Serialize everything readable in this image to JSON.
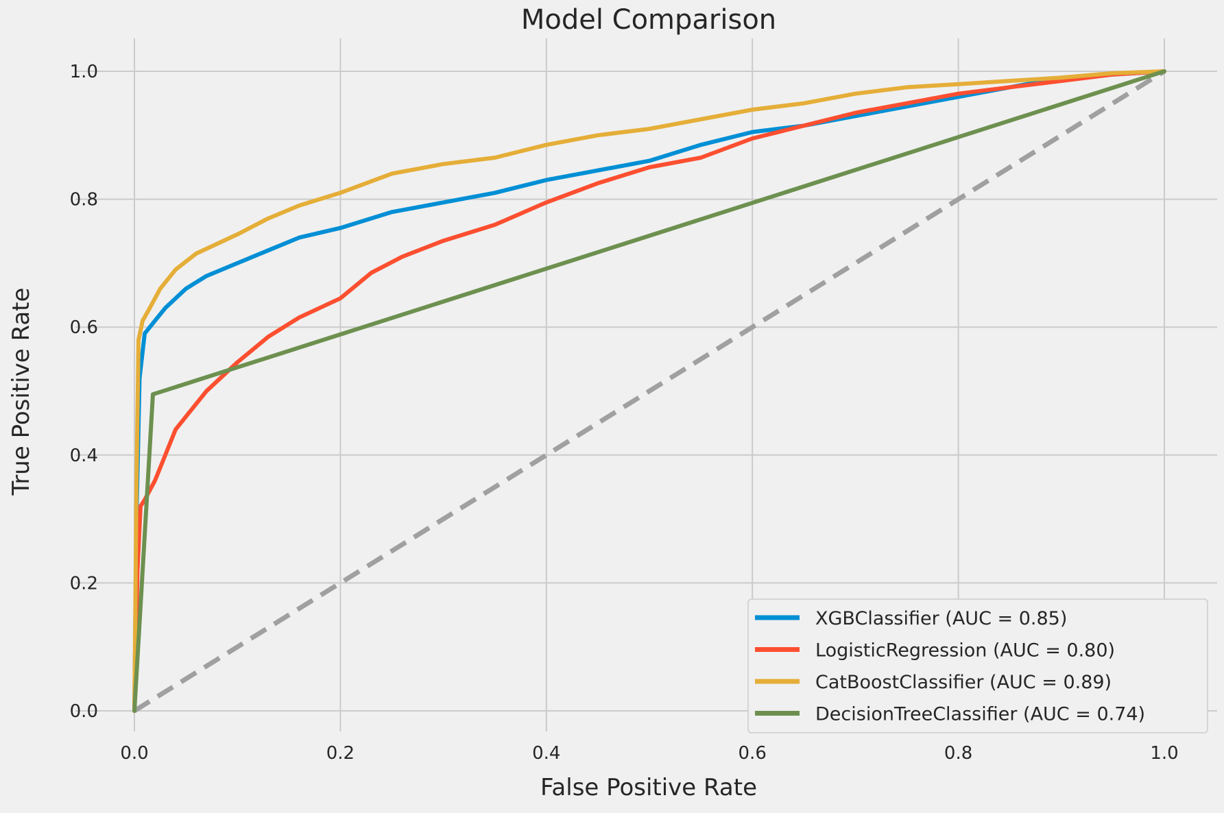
{
  "chart_data": {
    "type": "line",
    "title": "Model Comparison",
    "xlabel": "False Positive Rate",
    "ylabel": "True Positive Rate",
    "xlim": [
      -0.05,
      1.05
    ],
    "ylim": [
      -0.05,
      1.05
    ],
    "xticks": [
      0.0,
      0.2,
      0.4,
      0.6,
      0.8,
      1.0
    ],
    "yticks": [
      0.0,
      0.2,
      0.4,
      0.6,
      0.8,
      1.0
    ],
    "xtick_labels": [
      "0.0",
      "0.2",
      "0.4",
      "0.6",
      "0.8",
      "1.0"
    ],
    "ytick_labels": [
      "0.0",
      "0.2",
      "0.4",
      "0.6",
      "0.8",
      "1.0"
    ],
    "grid": true,
    "legend_position": "bottom-right",
    "series": [
      {
        "name": "XGBClassifier (AUC = 0.85)",
        "color": "#008fd5",
        "x": [
          0,
          0.002,
          0.005,
          0.01,
          0.02,
          0.03,
          0.05,
          0.07,
          0.1,
          0.13,
          0.16,
          0.2,
          0.25,
          0.3,
          0.35,
          0.4,
          0.45,
          0.5,
          0.55,
          0.6,
          0.65,
          0.7,
          0.75,
          0.8,
          0.85,
          0.9,
          0.95,
          1.0
        ],
        "y": [
          0,
          0.3,
          0.52,
          0.59,
          0.61,
          0.63,
          0.66,
          0.68,
          0.7,
          0.72,
          0.74,
          0.755,
          0.78,
          0.795,
          0.81,
          0.83,
          0.845,
          0.86,
          0.885,
          0.905,
          0.915,
          0.93,
          0.945,
          0.96,
          0.975,
          0.99,
          0.995,
          1.0
        ]
      },
      {
        "name": "LogisticRegression (AUC = 0.80)",
        "color": "#fc4f30",
        "x": [
          0,
          0.003,
          0.006,
          0.01,
          0.02,
          0.03,
          0.04,
          0.05,
          0.07,
          0.1,
          0.13,
          0.16,
          0.2,
          0.23,
          0.26,
          0.3,
          0.35,
          0.4,
          0.45,
          0.5,
          0.55,
          0.6,
          0.65,
          0.7,
          0.75,
          0.8,
          0.85,
          0.9,
          0.95,
          1.0
        ],
        "y": [
          0,
          0.22,
          0.32,
          0.33,
          0.36,
          0.4,
          0.44,
          0.46,
          0.5,
          0.545,
          0.585,
          0.615,
          0.645,
          0.685,
          0.71,
          0.735,
          0.76,
          0.795,
          0.825,
          0.85,
          0.865,
          0.895,
          0.915,
          0.935,
          0.95,
          0.965,
          0.975,
          0.985,
          0.995,
          1.0
        ]
      },
      {
        "name": "CatBoostClassifier (AUC = 0.89)",
        "color": "#e5ae38",
        "x": [
          0,
          0.002,
          0.004,
          0.008,
          0.015,
          0.025,
          0.04,
          0.06,
          0.08,
          0.1,
          0.13,
          0.16,
          0.2,
          0.25,
          0.3,
          0.35,
          0.4,
          0.45,
          0.5,
          0.55,
          0.6,
          0.65,
          0.7,
          0.75,
          0.8,
          0.85,
          0.9,
          0.95,
          1.0
        ],
        "y": [
          0,
          0.35,
          0.58,
          0.61,
          0.63,
          0.66,
          0.69,
          0.715,
          0.73,
          0.745,
          0.77,
          0.79,
          0.81,
          0.84,
          0.855,
          0.865,
          0.885,
          0.9,
          0.91,
          0.925,
          0.94,
          0.95,
          0.965,
          0.975,
          0.98,
          0.985,
          0.99,
          0.997,
          1.0
        ]
      },
      {
        "name": "DecisionTreeClassifier (AUC = 0.74)",
        "color": "#6d904f",
        "x": [
          0,
          0.018,
          1.0
        ],
        "y": [
          0,
          0.495,
          1.0
        ]
      }
    ],
    "reference_line": {
      "x": [
        0,
        1
      ],
      "y": [
        0,
        1
      ],
      "color": "#a0a0a0",
      "style": "dashed"
    }
  }
}
